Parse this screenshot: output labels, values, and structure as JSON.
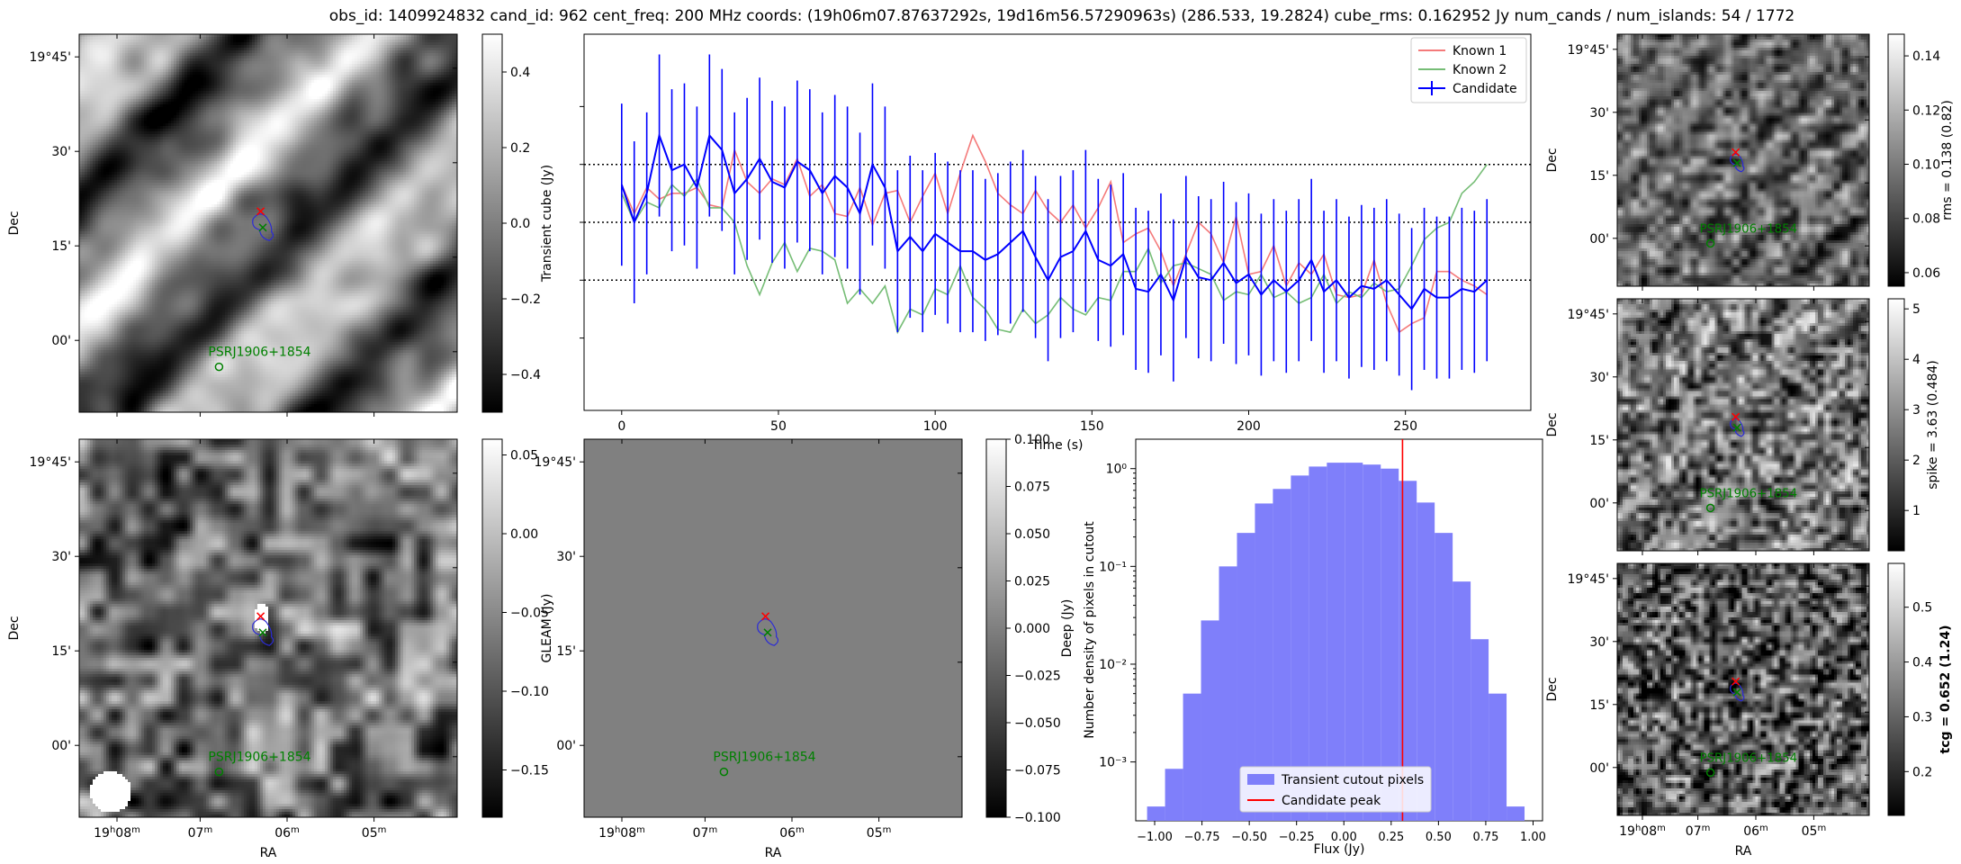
{
  "title": "obs_id: 1409924832 cand_id: 962 cent_freq: 200 MHz coords: (19h06m07.87637292s, 19d16m56.57290963s) (286.533, 19.2824) cube_rms: 0.162952 Jy num_cands / num_islands: 54 / 1772",
  "colors": {
    "known1": "#f47a7a",
    "known2": "#76bd76",
    "candidate": "#0000ff",
    "hist_fill": "#7f7ffa",
    "peak_line": "#ff0000",
    "source_green": "#008000",
    "cross_red": "#ff0000",
    "contour_blue": "#2b2bd6"
  },
  "sky_axes": {
    "ra_ticks": [
      "19h08m",
      "07m",
      "06m",
      "05m"
    ],
    "dec_ticks": [
      "19°45'",
      "30'",
      "15'",
      "00'"
    ],
    "xlabel": "RA",
    "ylabel": "Dec",
    "source_label": "PSRJ1906+1854"
  },
  "panels": {
    "transient": {
      "cbar_label": "Transient cube (Jy)",
      "cbar_ticks": [
        "0.4",
        "0.2",
        "0.0",
        "−0.2",
        "−0.4"
      ],
      "cbar_range": [
        -0.5,
        0.5
      ],
      "cbar_tick_values": [
        0.4,
        0.2,
        0.0,
        -0.2,
        -0.4
      ]
    },
    "gleam": {
      "cbar_label": "GLEAM (Jy)",
      "cbar_ticks": [
        "0.05",
        "0.00",
        "−0.05",
        "−0.10",
        "−0.15"
      ],
      "cbar_range": [
        -0.18,
        0.06
      ],
      "cbar_tick_values": [
        0.05,
        0.0,
        -0.05,
        -0.1,
        -0.15
      ]
    },
    "deep": {
      "cbar_label": "Deep (Jy)",
      "cbar_ticks": [
        "0.100",
        "0.075",
        "0.050",
        "0.025",
        "0.000",
        "−0.025",
        "−0.050",
        "−0.075",
        "−0.100"
      ],
      "cbar_range": [
        -0.1,
        0.1
      ],
      "cbar_tick_values": [
        0.1,
        0.075,
        0.05,
        0.025,
        0.0,
        -0.025,
        -0.05,
        -0.075,
        -0.1
      ]
    },
    "rms": {
      "cbar_label": "rms = 0.138 (0.82)",
      "cbar_ticks": [
        "0.14",
        "0.12",
        "0.10",
        "0.08",
        "0.06"
      ],
      "cbar_range": [
        0.055,
        0.148
      ],
      "cbar_tick_values": [
        0.14,
        0.12,
        0.1,
        0.08,
        0.06
      ]
    },
    "spike": {
      "cbar_label": "spike = 3.63 (0.484)",
      "cbar_ticks": [
        "5",
        "4",
        "3",
        "2",
        "1"
      ],
      "cbar_range": [
        0.2,
        5.2
      ],
      "cbar_tick_values": [
        5,
        4,
        3,
        2,
        1
      ]
    },
    "tcg": {
      "cbar_label": "tcg = 0.652 (1.24)",
      "cbar_ticks": [
        "0.5",
        "0.4",
        "0.3",
        "0.2"
      ],
      "cbar_range": [
        0.12,
        0.58
      ],
      "cbar_tick_values": [
        0.5,
        0.4,
        0.3,
        0.2
      ]
    }
  },
  "chart_data": [
    {
      "type": "line",
      "xlabel": "Time (s)",
      "ylabel": "",
      "xlim": [
        -12,
        290
      ],
      "ylim": [
        -0.65,
        0.65
      ],
      "x_ticks": [
        0,
        50,
        100,
        150,
        200,
        250
      ],
      "hlines": [
        0.2,
        0.0,
        -0.2
      ],
      "legend": [
        "Known 1",
        "Known 2",
        "Candidate"
      ],
      "legend_position": "top-right",
      "x": [
        0,
        4,
        8,
        12,
        16,
        20,
        24,
        28,
        32,
        36,
        40,
        44,
        48,
        52,
        56,
        60,
        64,
        68,
        72,
        76,
        80,
        84,
        88,
        92,
        96,
        100,
        104,
        108,
        112,
        116,
        120,
        124,
        128,
        132,
        136,
        140,
        144,
        148,
        152,
        156,
        160,
        164,
        168,
        172,
        176,
        180,
        184,
        188,
        192,
        196,
        200,
        204,
        208,
        212,
        216,
        220,
        224,
        228,
        232,
        236,
        240,
        244,
        248,
        252,
        256,
        260,
        264,
        268,
        272,
        276
      ],
      "series": [
        {
          "name": "Known 1",
          "values": [
            0.13,
            0.03,
            0.12,
            0.08,
            0.1,
            0.1,
            0.12,
            0.06,
            0.05,
            0.25,
            0.14,
            0.1,
            0.15,
            0.13,
            0.22,
            0.09,
            0.13,
            0.03,
            0.02,
            0.12,
            -0.01,
            0.1,
            0.11,
            0.0,
            0.09,
            0.17,
            0.03,
            0.17,
            0.3,
            0.21,
            0.1,
            0.06,
            0.03,
            0.11,
            0.04,
            0.0,
            0.06,
            -0.02,
            0.05,
            0.14,
            -0.07,
            -0.04,
            -0.02,
            -0.1,
            -0.22,
            -0.11,
            0.0,
            -0.04,
            -0.14,
            0.02,
            -0.18,
            -0.17,
            -0.08,
            -0.22,
            -0.14,
            -0.18,
            -0.11,
            -0.25,
            -0.26,
            -0.25,
            -0.13,
            -0.28,
            -0.38,
            -0.35,
            -0.33,
            -0.17,
            -0.17,
            -0.2,
            -0.22,
            -0.25
          ]
        },
        {
          "name": "Known 2",
          "values": [
            0.1,
            0.0,
            0.07,
            0.05,
            0.13,
            0.09,
            0.15,
            0.05,
            0.05,
            0.0,
            -0.15,
            -0.25,
            -0.14,
            -0.07,
            -0.17,
            -0.09,
            -0.1,
            -0.13,
            -0.28,
            -0.23,
            -0.28,
            -0.22,
            -0.38,
            -0.3,
            -0.32,
            -0.23,
            -0.25,
            -0.15,
            -0.26,
            -0.3,
            -0.37,
            -0.38,
            -0.3,
            -0.35,
            -0.32,
            -0.26,
            -0.3,
            -0.32,
            -0.26,
            -0.27,
            -0.17,
            -0.17,
            -0.09,
            -0.21,
            -0.15,
            -0.14,
            -0.16,
            -0.18,
            -0.27,
            -0.24,
            -0.25,
            -0.18,
            -0.26,
            -0.24,
            -0.28,
            -0.26,
            -0.18,
            -0.28,
            -0.24,
            -0.26,
            -0.21,
            -0.24,
            -0.23,
            -0.15,
            -0.06,
            -0.02,
            0.0,
            0.1,
            0.14,
            0.2
          ]
        },
        {
          "name": "Candidate",
          "values": [
            0.13,
            0.0,
            0.1,
            0.3,
            0.18,
            0.2,
            0.12,
            0.3,
            0.25,
            0.1,
            0.15,
            0.22,
            0.14,
            0.12,
            0.21,
            0.18,
            0.1,
            0.16,
            0.12,
            0.03,
            0.2,
            0.12,
            -0.1,
            -0.05,
            -0.1,
            -0.04,
            -0.07,
            -0.1,
            -0.1,
            -0.13,
            -0.11,
            -0.07,
            -0.03,
            -0.12,
            -0.2,
            -0.12,
            -0.1,
            -0.03,
            -0.13,
            -0.15,
            -0.11,
            -0.23,
            -0.24,
            -0.18,
            -0.27,
            -0.12,
            -0.19,
            -0.2,
            -0.14,
            -0.21,
            -0.18,
            -0.25,
            -0.2,
            -0.24,
            -0.2,
            -0.13,
            -0.24,
            -0.2,
            -0.26,
            -0.22,
            -0.23,
            -0.2,
            -0.25,
            -0.3,
            -0.23,
            -0.26,
            -0.26,
            -0.23,
            -0.24,
            -0.2
          ],
          "errors": [
            0.28,
            0.28,
            0.28,
            0.28,
            0.28,
            0.28,
            0.28,
            0.28,
            0.28,
            0.28,
            0.28,
            0.28,
            0.28,
            0.28,
            0.28,
            0.28,
            0.28,
            0.28,
            0.28,
            0.28,
            0.28,
            0.28,
            0.28,
            0.28,
            0.28,
            0.28,
            0.28,
            0.28,
            0.28,
            0.28,
            0.28,
            0.28,
            0.28,
            0.28,
            0.28,
            0.28,
            0.28,
            0.28,
            0.28,
            0.28,
            0.28,
            0.28,
            0.28,
            0.28,
            0.28,
            0.28,
            0.28,
            0.28,
            0.28,
            0.28,
            0.28,
            0.28,
            0.28,
            0.28,
            0.28,
            0.28,
            0.28,
            0.28,
            0.28,
            0.28,
            0.28,
            0.28,
            0.28,
            0.28,
            0.28,
            0.28,
            0.28,
            0.28,
            0.28,
            0.28
          ]
        }
      ]
    },
    {
      "type": "bar",
      "title": "",
      "xlabel": "Flux (Jy)",
      "ylabel": "Number density of pixels in cutout",
      "yscale": "log",
      "xlim": [
        -1.1,
        1.05
      ],
      "ylim": [
        0.00025,
        2.0
      ],
      "x_ticks": [
        -1.0,
        -0.75,
        -0.5,
        -0.25,
        0.0,
        0.25,
        0.5,
        0.75,
        1.0
      ],
      "x_tick_labels": [
        "−1.00",
        "−0.75",
        "−0.50",
        "−0.25",
        "0.00",
        "0.25",
        "0.50",
        "0.75",
        "1.00"
      ],
      "y_ticks": [
        0.001,
        0.01,
        0.1,
        1
      ],
      "y_tick_labels": [
        "10⁻³",
        "10⁻²",
        "10⁻¹",
        "10⁰"
      ],
      "bin_edges": [
        -1.04,
        -0.945,
        -0.85,
        -0.755,
        -0.66,
        -0.565,
        -0.47,
        -0.375,
        -0.28,
        -0.185,
        -0.09,
        0.005,
        0.1,
        0.195,
        0.29,
        0.385,
        0.48,
        0.575,
        0.67,
        0.765,
        0.86,
        0.955
      ],
      "values": [
        0.00035,
        0.00085,
        0.005,
        0.028,
        0.1,
        0.22,
        0.44,
        0.62,
        0.85,
        1.05,
        1.15,
        1.15,
        1.1,
        1.0,
        0.75,
        0.45,
        0.22,
        0.07,
        0.018,
        0.005,
        0.00035
      ],
      "legend": [
        "Transient cutout pixels",
        "Candidate peak"
      ],
      "legend_position": "bottom-center",
      "vline": 0.31
    }
  ]
}
